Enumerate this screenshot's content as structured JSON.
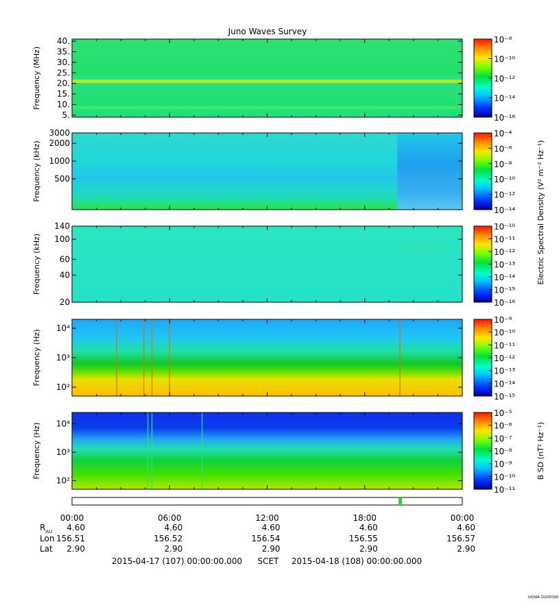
{
  "title": "Juno Waves Survey",
  "footer_tag": "UIOWA 20200306",
  "colorbar_labels": {
    "electric": "Electric Spectral Density (V² m⁻² Hz⁻¹)",
    "magnetic": "B SD (nT² Hz⁻¹)"
  },
  "chart_data": [
    {
      "type": "heatmap",
      "panel": "HFR high",
      "ylabel": "Frequency (MHz)",
      "yscale": "linear",
      "ylim": [
        4,
        41
      ],
      "yticks": [
        5,
        10,
        15,
        20,
        25,
        30,
        35,
        40
      ],
      "yticklabels": [
        "5.",
        "10.",
        "15.",
        "20.",
        "25.",
        "30.",
        "35.",
        "40."
      ],
      "colorbar": {
        "scale": "log",
        "ticks_exp": [
          -16,
          -14,
          -12,
          -10,
          -8
        ]
      },
      "features": [
        {
          "kind": "horizontal-band",
          "freq": 21,
          "level": "yellow",
          "time": "continuous"
        },
        {
          "kind": "horizontal-band",
          "freq": 8.5,
          "level": "light-green",
          "time": "continuous"
        }
      ]
    },
    {
      "type": "heatmap",
      "panel": "HFR low",
      "ylabel": "Frequency (kHz)",
      "yscale": "log",
      "ylim": [
        150,
        3000
      ],
      "yticks": [
        500,
        1000,
        2000,
        3000
      ],
      "yticklabels": [
        "500",
        "1000",
        "2000",
        "3000"
      ],
      "colorbar": {
        "scale": "log",
        "ticks_exp": [
          -14,
          -12,
          -10,
          -8,
          -6,
          -4
        ]
      },
      "features": [
        {
          "kind": "mode-change",
          "time": "20:00",
          "description": "lower intensities after"
        }
      ]
    },
    {
      "type": "heatmap",
      "panel": "LFR high",
      "ylabel": "Frequency (kHz)",
      "yscale": "log",
      "ylim": [
        20,
        140
      ],
      "yticks": [
        20,
        40,
        60,
        100,
        140
      ],
      "yticklabels": [
        "20",
        "40",
        "60",
        "100",
        "140"
      ],
      "colorbar": {
        "scale": "log",
        "ticks_exp": [
          -16,
          -15,
          -14,
          -13,
          -12,
          -11,
          -10
        ]
      },
      "features": [
        {
          "kind": "faint-band",
          "freq": 80,
          "time_start": "20:00",
          "time_end": "24:00"
        }
      ]
    },
    {
      "type": "heatmap",
      "panel": "LFR low electric",
      "ylabel": "Frequency (Hz)",
      "yscale": "log",
      "ylim": [
        50,
        20000
      ],
      "yticks": [
        100,
        1000,
        10000
      ],
      "yticklabels_exp": [
        2,
        3,
        4
      ],
      "colorbar": {
        "scale": "log",
        "ticks_exp": [
          -15,
          -14,
          -13,
          -12,
          -11,
          -10,
          -9
        ]
      },
      "features": [
        {
          "kind": "spike",
          "time": "02:45"
        },
        {
          "kind": "spike",
          "time": "04:25"
        },
        {
          "kind": "spike",
          "time": "04:55"
        },
        {
          "kind": "spike",
          "time": "06:00"
        },
        {
          "kind": "spike",
          "time": "20:10"
        }
      ]
    },
    {
      "type": "heatmap",
      "panel": "LFR low magnetic",
      "ylabel": "Frequency (Hz)",
      "yscale": "log",
      "ylim": [
        50,
        25000
      ],
      "yticks": [
        100,
        1000,
        10000
      ],
      "yticklabels_exp": [
        2,
        3,
        4
      ],
      "colorbar": {
        "scale": "log",
        "ticks_exp": [
          -11,
          -10,
          -9,
          -8,
          -7,
          -6,
          -5
        ]
      },
      "features": [
        {
          "kind": "spike",
          "time": "04:40"
        },
        {
          "kind": "spike",
          "time": "04:55"
        },
        {
          "kind": "spike",
          "time": "08:00"
        }
      ]
    }
  ],
  "time_axis": {
    "ticks": [
      "00:00",
      "06:00",
      "12:00",
      "18:00",
      "00:00"
    ],
    "rows": [
      {
        "label": "R",
        "label_sub": "AU",
        "values": [
          "4.60",
          "4.60",
          "4.60",
          "4.60",
          "4.60"
        ]
      },
      {
        "label": "Lon",
        "values": [
          "156.51",
          "156.52",
          "156.54",
          "156.55",
          "156.57"
        ]
      },
      {
        "label": "Lat",
        "values": [
          "2.90",
          "2.90",
          "2.90",
          "2.90",
          "2.90"
        ]
      }
    ],
    "mode_bar_marker_time": "20:10",
    "mode_bar_color": "#22dd22"
  },
  "footer": {
    "start": "2015-04-17 (107) 00:00:00.000",
    "scet": "SCET",
    "end": "2015-04-18 (108) 00:00:00.000"
  }
}
